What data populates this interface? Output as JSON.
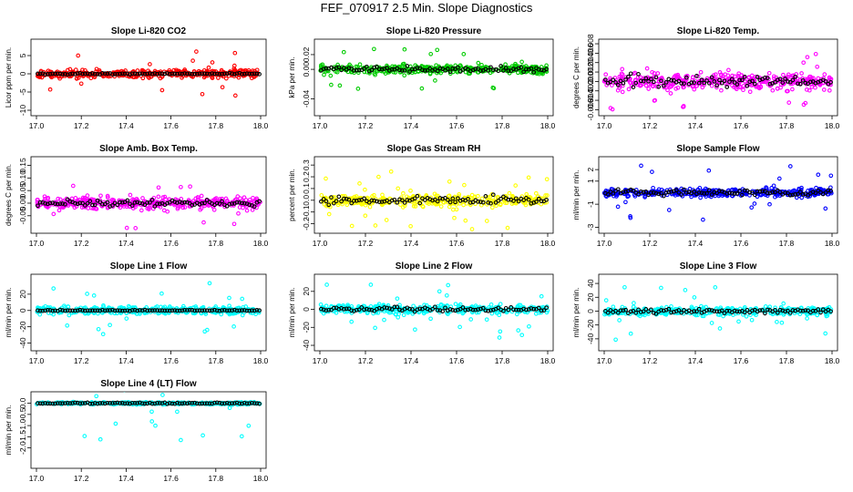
{
  "page_title": "FEF_070917  2.5 Min. Slope Diagnostics",
  "chart_data": [
    {
      "type": "scatter",
      "title": "Slope Li-820 CO2",
      "ylabel": "Licor ppm per min.",
      "color": "#ff0000",
      "xlim": [
        17.0,
        18.0
      ],
      "ylim": [
        -10.5,
        8.5
      ],
      "xticks": [
        17.0,
        17.2,
        17.4,
        17.6,
        17.8,
        18.0
      ],
      "xtick_labels": [
        "17.0",
        "17.2",
        "17.4",
        "17.6",
        "17.8",
        "18.0"
      ],
      "yticks": [
        -10,
        -5,
        0,
        5
      ],
      "ytick_labels": [
        "-10",
        "-5",
        "0",
        "5"
      ],
      "spread": 2.0,
      "spike": 7.0,
      "black_spread": 0.3
    },
    {
      "type": "scatter",
      "title": "Slope Li-820 Pressure",
      "ylabel": "kPa per min.",
      "color": "#00cc00",
      "xlim": [
        17.0,
        18.0
      ],
      "ylim": [
        -0.058,
        0.036
      ],
      "xticks": [
        17.0,
        17.2,
        17.4,
        17.6,
        17.8,
        18.0
      ],
      "xtick_labels": [
        "17.0",
        "17.2",
        "17.4",
        "17.6",
        "17.8",
        "18.0"
      ],
      "yticks": [
        -0.04,
        0.0,
        0.02
      ],
      "ytick_labels": [
        "-0.04",
        "0.00",
        "0.02"
      ],
      "spread": 0.01,
      "spike": 0.03,
      "black_spread": 0.006
    },
    {
      "type": "scatter",
      "title": "Slope Li-820 Temp.",
      "ylabel": "degrees C per min.",
      "color": "#ff00ff",
      "xlim": [
        17.0,
        18.0
      ],
      "ylim": [
        -0.0065,
        0.0082
      ],
      "xticks": [
        17.0,
        17.2,
        17.4,
        17.6,
        17.8,
        18.0
      ],
      "xtick_labels": [
        "17.0",
        "17.2",
        "17.4",
        "17.6",
        "17.8",
        "18.0"
      ],
      "yticks": [
        -0.006,
        -0.004,
        -0.002,
        0.0,
        0.002,
        0.004,
        0.006,
        0.008
      ],
      "ytick_labels": [
        "-0.006",
        "-0.004",
        "-0.002",
        "0.000",
        "0.002",
        "0.004",
        "0.006",
        "0.008"
      ],
      "spread": 0.003,
      "spike": 0.006,
      "black_spread": 0.002
    },
    {
      "type": "scatter",
      "title": "Slope Amb. Box Temp.",
      "ylabel": "degrees C per min.",
      "color": "#ff00ff",
      "xlim": [
        17.0,
        18.0
      ],
      "ylim": [
        -0.105,
        0.17
      ],
      "xticks": [
        17.0,
        17.2,
        17.4,
        17.6,
        17.8,
        18.0
      ],
      "xtick_labels": [
        "17.0",
        "17.2",
        "17.4",
        "17.6",
        "17.8",
        "18.0"
      ],
      "yticks": [
        -0.05,
        0.0,
        0.05,
        0.1,
        0.15
      ],
      "ytick_labels": [
        "-0.05",
        "0.00",
        "0.05",
        "0.10",
        "0.15"
      ],
      "spread": 0.04,
      "spike": 0.1,
      "black_spread": 0.02
    },
    {
      "type": "scatter",
      "title": "Slope Gas Stream RH",
      "ylabel": "percent per min.",
      "color": "#ffff00",
      "xlim": [
        17.0,
        18.0
      ],
      "ylim": [
        -0.25,
        0.34
      ],
      "xticks": [
        17.0,
        17.2,
        17.4,
        17.6,
        17.8,
        18.0
      ],
      "xtick_labels": [
        "17.0",
        "17.2",
        "17.4",
        "17.6",
        "17.8",
        "18.0"
      ],
      "yticks": [
        -0.2,
        -0.1,
        0.0,
        0.1,
        0.2,
        0.3
      ],
      "ytick_labels": [
        "-0.2",
        "-0.1",
        "0.0",
        "0.1",
        "0.2",
        "0.3"
      ],
      "spread": 0.08,
      "spike": 0.25,
      "black_spread": 0.06
    },
    {
      "type": "scatter",
      "title": "Slope Sample Flow",
      "ylabel": "ml/min per min.",
      "color": "#0000ff",
      "xlim": [
        17.0,
        18.0
      ],
      "ylim": [
        -3.2,
        2.8
      ],
      "xticks": [
        17.0,
        17.2,
        17.4,
        17.6,
        17.8,
        18.0
      ],
      "xtick_labels": [
        "17.0",
        "17.2",
        "17.4",
        "17.6",
        "17.8",
        "18.0"
      ],
      "yticks": [
        -3,
        -1,
        1,
        2
      ],
      "ytick_labels": [
        "-3",
        "-1",
        "1",
        "2"
      ],
      "spread": 0.6,
      "spike": 2.5,
      "black_spread": 0.4
    },
    {
      "type": "scatter",
      "title": "Slope Line 1 Flow",
      "ylabel": "ml/min per min.",
      "color": "#00ffff",
      "xlim": [
        17.0,
        18.0
      ],
      "ylim": [
        -45,
        40
      ],
      "xticks": [
        17.0,
        17.2,
        17.4,
        17.6,
        17.8,
        18.0
      ],
      "xtick_labels": [
        "17.0",
        "17.2",
        "17.4",
        "17.6",
        "17.8",
        "18.0"
      ],
      "yticks": [
        -40,
        -20,
        0,
        20
      ],
      "ytick_labels": [
        "-40",
        "-20",
        "0",
        "20"
      ],
      "spread": 8,
      "spike": 35,
      "black_spread": 1
    },
    {
      "type": "scatter",
      "title": "Slope Line 2 Flow",
      "ylabel": "ml/min per min.",
      "color": "#00ffff",
      "xlim": [
        17.0,
        18.0
      ],
      "ylim": [
        -42,
        35
      ],
      "xticks": [
        17.0,
        17.2,
        17.4,
        17.6,
        17.8,
        18.0
      ],
      "xtick_labels": [
        "17.0",
        "17.2",
        "17.4",
        "17.6",
        "17.8",
        "18.0"
      ],
      "yticks": [
        -40,
        -20,
        0,
        20
      ],
      "ytick_labels": [
        "-40",
        "-20",
        "0",
        "20"
      ],
      "spread": 8,
      "spike": 32,
      "black_spread": 4
    },
    {
      "type": "scatter",
      "title": "Slope Line 3 Flow",
      "ylabel": "ml/min per min.",
      "color": "#00ffff",
      "xlim": [
        17.0,
        18.0
      ],
      "ylim": [
        -52,
        48
      ],
      "xticks": [
        17.0,
        17.2,
        17.4,
        17.6,
        17.8,
        18.0
      ],
      "xtick_labels": [
        "17.0",
        "17.2",
        "17.4",
        "17.6",
        "17.8",
        "18.0"
      ],
      "yticks": [
        -40,
        -20,
        0,
        20,
        40
      ],
      "ytick_labels": [
        "-40",
        "-20",
        "0",
        "20",
        "40"
      ],
      "spread": 10,
      "spike": 42,
      "black_spread": 5
    },
    {
      "type": "scatter",
      "title": "Slope Line 4 (LT) Flow",
      "ylabel": "ml/min per min.",
      "color": "#00ffff",
      "xlim": [
        17.0,
        18.0
      ],
      "ylim": [
        -2.75,
        0.35
      ],
      "xticks": [
        17.0,
        17.2,
        17.4,
        17.6,
        17.8,
        18.0
      ],
      "xtick_labels": [
        "17.0",
        "17.2",
        "17.4",
        "17.6",
        "17.8",
        "18.0"
      ],
      "yticks": [
        -2.0,
        -1.5,
        -1.0,
        -0.5,
        0.0
      ],
      "ytick_labels": [
        "-2.0",
        "-1.5",
        "-1.0",
        "-0.5",
        "0.0"
      ],
      "spread": 0.08,
      "spike": 1.8,
      "black_spread": 0.05
    }
  ]
}
